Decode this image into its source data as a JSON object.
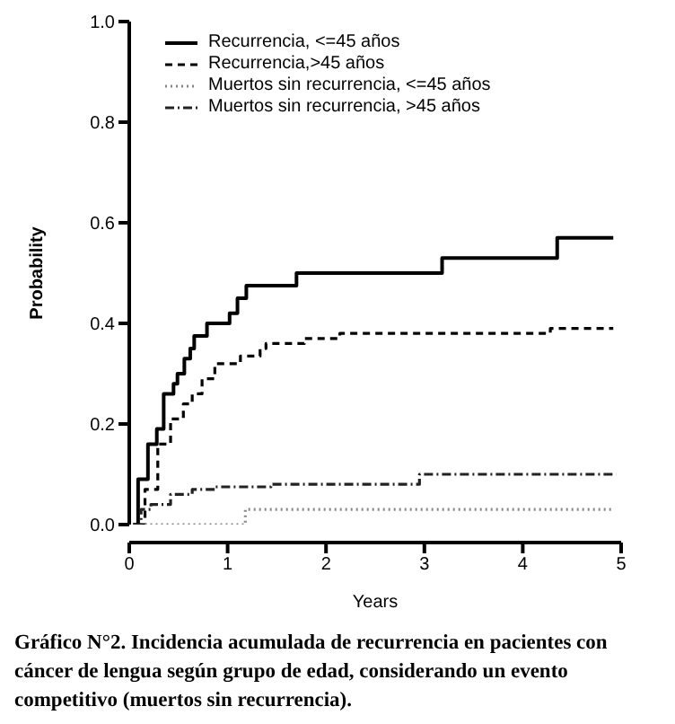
{
  "chart_data": {
    "type": "step",
    "xlabel": "Years",
    "ylabel": "Probability",
    "xlim": [
      0,
      5
    ],
    "xticks": [
      0,
      1,
      2,
      3,
      4,
      5
    ],
    "ylim": [
      0,
      1
    ],
    "yticks": [
      {
        "value": 0,
        "label": "0.0"
      },
      {
        "value": 0.2,
        "label": "0.2"
      },
      {
        "value": 0.4,
        "label": "0.4"
      },
      {
        "value": 0.6,
        "label": "0.6"
      },
      {
        "value": 0.8,
        "label": "0.8"
      },
      {
        "value": 1,
        "label": "1.0"
      }
    ],
    "grid": false,
    "legend": "top left",
    "marker": "none",
    "series": [
      {
        "name": "Recurrencia, <=45 años",
        "color": "#000000",
        "line_style": "solid",
        "x": [
          0.04,
          0.09,
          0.19,
          0.28,
          0.35,
          0.45,
          0.49,
          0.56,
          0.62,
          0.66,
          0.79,
          1.02,
          1.1,
          1.19,
          1.7,
          3.18,
          4.35,
          4.92
        ],
        "values": [
          0,
          0.09,
          0.16,
          0.19,
          0.26,
          0.28,
          0.3,
          0.33,
          0.35,
          0.375,
          0.4,
          0.42,
          0.45,
          0.475,
          0.5,
          0.53,
          0.57,
          0.57
        ]
      },
      {
        "name": "Recurrencia,>45 años",
        "color": "#000000",
        "line_style": "dashed",
        "x": [
          0.1,
          0.16,
          0.29,
          0.42,
          0.55,
          0.64,
          0.74,
          0.87,
          1.13,
          1.33,
          1.39,
          1.78,
          2.14,
          4.28,
          4.92
        ],
        "values": [
          0,
          0.07,
          0.16,
          0.21,
          0.24,
          0.26,
          0.29,
          0.32,
          0.335,
          0.35,
          0.36,
          0.37,
          0.38,
          0.39,
          0.39
        ]
      },
      {
        "name": "Muertos sin recurrencia, <=45 años",
        "color": "#888888",
        "line_style": "dotted",
        "x": [
          0.05,
          1.18,
          4.92
        ],
        "values": [
          0,
          0.03,
          0.03
        ]
      },
      {
        "name": "Muertos sin recurrencia, >45 años",
        "color": "#222222",
        "line_style": "dashdot",
        "x": [
          0.04,
          0.12,
          0.22,
          0.42,
          0.64,
          0.87,
          1.44,
          2.95,
          4.95
        ],
        "values": [
          0,
          0.03,
          0.04,
          0.06,
          0.07,
          0.075,
          0.08,
          0.1,
          0.1
        ]
      }
    ],
    "annotations": [
      "Gráfico N°2. Incidencia acumulada de recurrencia en pacientes con cáncer de lengua según grupo de edad, considerando un evento competitivo (muertos sin recurrencia)."
    ]
  }
}
